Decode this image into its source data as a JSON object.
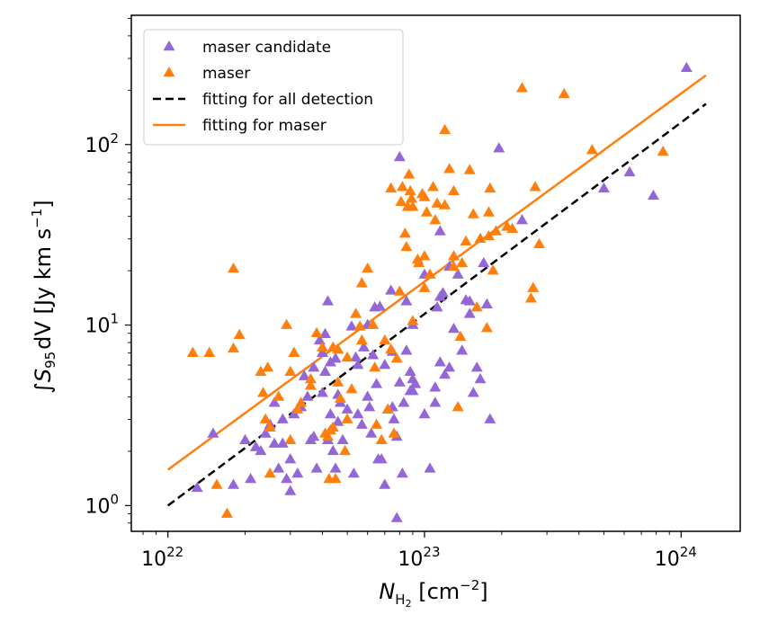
{
  "chart_data": {
    "type": "scatter",
    "title": "",
    "xlabel": "N_H2 [cm^-2]",
    "xlabel_parts": {
      "symbol": "N",
      "sub": "H",
      "subsub": "2",
      "unit_open": " [cm",
      "exp": "−2",
      "unit_close": "]"
    },
    "ylabel": "∫S95 dV [Jy km s^-1]",
    "ylabel_parts": {
      "integral": "∫",
      "symbol": "S",
      "sub": "95",
      "dv": "dV",
      "unit": " [Jy km s",
      "exp": "−1",
      "close": "]"
    },
    "xscale": "log",
    "yscale": "log",
    "xlim": [
      7.2e+21,
      1.7e+24
    ],
    "ylim": [
      0.72,
      520
    ],
    "x_ticks": [
      {
        "value": 1e+22,
        "base": "10",
        "exp": "22"
      },
      {
        "value": 1e+23,
        "base": "10",
        "exp": "23"
      },
      {
        "value": 1e+24,
        "base": "10",
        "exp": "24"
      }
    ],
    "y_ticks": [
      {
        "value": 1,
        "base": "10",
        "exp": "0"
      },
      {
        "value": 10,
        "base": "10",
        "exp": "1"
      },
      {
        "value": 100,
        "base": "10",
        "exp": "2"
      }
    ],
    "legend_position": "upper-left",
    "series": [
      {
        "name": "maser candidate",
        "marker": "triangle",
        "color": "#9467d6",
        "points": [
          [
            1.3e+22,
            1.25
          ],
          [
            1.5e+22,
            2.5
          ],
          [
            1.8e+22,
            1.3
          ],
          [
            2e+22,
            2.3
          ],
          [
            2.1e+22,
            1.4
          ],
          [
            2.2e+22,
            2.1
          ],
          [
            2.3e+22,
            2.0
          ],
          [
            2.4e+22,
            2.5
          ],
          [
            2.5e+22,
            2.8
          ],
          [
            2.6e+22,
            3.7
          ],
          [
            2.6e+22,
            2.2
          ],
          [
            2.7e+22,
            1.6
          ],
          [
            2.8e+22,
            2.2
          ],
          [
            2.8e+22,
            3.0
          ],
          [
            2.9e+22,
            1.4
          ],
          [
            3e+22,
            1.2
          ],
          [
            3e+22,
            1.8
          ],
          [
            3.1e+22,
            3.2
          ],
          [
            3.2e+22,
            1.5
          ],
          [
            3.3e+22,
            3.5
          ],
          [
            3.4e+22,
            5.2
          ],
          [
            3.5e+22,
            4.0
          ],
          [
            3.6e+22,
            2.3
          ],
          [
            3.7e+22,
            5.8
          ],
          [
            3.8e+22,
            1.6
          ],
          [
            3.9e+22,
            8.2
          ],
          [
            4e+22,
            7.0
          ],
          [
            4e+22,
            4.2
          ],
          [
            4.1e+22,
            8.9
          ],
          [
            4.1e+22,
            5.5
          ],
          [
            4.2e+22,
            2.3
          ],
          [
            4.2e+22,
            13.5
          ],
          [
            4.3e+22,
            6.2
          ],
          [
            4.3e+22,
            3.2
          ],
          [
            4.4e+22,
            2.0
          ],
          [
            4.5e+22,
            1.6
          ],
          [
            4.5e+22,
            6.5
          ],
          [
            4.6e+22,
            4.1
          ],
          [
            4.7e+22,
            3.7
          ],
          [
            4.8e+22,
            2.3
          ],
          [
            5e+22,
            3.4
          ],
          [
            5.2e+22,
            9.8
          ],
          [
            5.3e+22,
            1.5
          ],
          [
            5.5e+22,
            3.2
          ],
          [
            5.5e+22,
            6.0
          ],
          [
            5.7e+22,
            2.8
          ],
          [
            5.8e+22,
            7.5
          ],
          [
            6e+22,
            10.0
          ],
          [
            6e+22,
            4.0
          ],
          [
            6.1e+22,
            3.5
          ],
          [
            6.2e+22,
            2.5
          ],
          [
            6.4e+22,
            12.5
          ],
          [
            6.5e+22,
            4.7
          ],
          [
            6.6e+22,
            1.8
          ],
          [
            6.8e+22,
            1.8
          ],
          [
            7e+22,
            6.0
          ],
          [
            7e+22,
            1.3
          ],
          [
            7.2e+22,
            3.4
          ],
          [
            7.4e+22,
            15.5
          ],
          [
            7.5e+22,
            7.1
          ],
          [
            7.5e+22,
            3.5
          ],
          [
            7.6e+22,
            3.0
          ],
          [
            7.8e+22,
            0.85
          ],
          [
            7.8e+22,
            2.4
          ],
          [
            8e+22,
            4.8
          ],
          [
            8e+22,
            85
          ],
          [
            8.2e+22,
            1.5
          ],
          [
            8.3e+22,
            3.7
          ],
          [
            8.5e+22,
            7.2
          ],
          [
            8.5e+22,
            13.5
          ],
          [
            8.8e+22,
            5.5
          ],
          [
            8.8e+22,
            4.3
          ],
          [
            9e+22,
            5.0
          ],
          [
            9e+22,
            10.0
          ],
          [
            9.2e+22,
            4.7
          ],
          [
            1e+23,
            3.2
          ],
          [
            1.05e+23,
            1.6
          ],
          [
            1.1e+23,
            4.5
          ],
          [
            1.1e+23,
            3.7
          ],
          [
            1.12e+23,
            12.5
          ],
          [
            1.15e+23,
            6.2
          ],
          [
            1.18e+23,
            15
          ],
          [
            1.2e+23,
            5.3
          ],
          [
            1.25e+23,
            5.8
          ],
          [
            1.3e+23,
            9.5
          ],
          [
            1.35e+23,
            19
          ],
          [
            1.4e+23,
            7.2
          ],
          [
            1.5e+23,
            13.5
          ],
          [
            1.55e+23,
            4.2
          ],
          [
            1.6e+23,
            5.8
          ],
          [
            1.7e+23,
            22
          ],
          [
            1.75e+23,
            13
          ],
          [
            1.8e+23,
            3.0
          ],
          [
            1.95e+23,
            95
          ],
          [
            2.4e+23,
            38
          ],
          [
            5e+23,
            57
          ],
          [
            6.3e+23,
            70
          ],
          [
            7.8e+23,
            52
          ],
          [
            1.05e+24,
            265
          ],
          [
            1.15e+23,
            33
          ],
          [
            1.25e+23,
            21
          ],
          [
            1.45e+23,
            13.7
          ],
          [
            1e+23,
            19
          ],
          [
            1.15e+23,
            14.3
          ],
          [
            6.3e+22,
            6.8
          ],
          [
            5.4e+22,
            6.6
          ],
          [
            6.7e+22,
            12.6
          ],
          [
            4.6e+22,
            2.9
          ],
          [
            3.7e+22,
            2.4
          ],
          [
            1.65e+23,
            5.0
          ],
          [
            9e+22,
            4.3
          ],
          [
            1.5e+23,
            11.5
          ]
        ]
      },
      {
        "name": "maser",
        "marker": "triangle",
        "color": "#ff7f0e",
        "points": [
          [
            1.25e+22,
            7.0
          ],
          [
            1.45e+22,
            7.0
          ],
          [
            1.55e+22,
            1.3
          ],
          [
            1.7e+22,
            0.9
          ],
          [
            1.8e+22,
            20.5
          ],
          [
            1.8e+22,
            7.4
          ],
          [
            1.9e+22,
            8.8
          ],
          [
            2.3e+22,
            5.5
          ],
          [
            2.35e+22,
            4.2
          ],
          [
            2.4e+22,
            3.0
          ],
          [
            2.45e+22,
            5.8
          ],
          [
            2.5e+22,
            1.5
          ],
          [
            2.5e+22,
            2.7
          ],
          [
            2.7e+22,
            4.0
          ],
          [
            2.9e+22,
            10.0
          ],
          [
            3e+22,
            2.3
          ],
          [
            3e+22,
            5.5
          ],
          [
            3.1e+22,
            7.0
          ],
          [
            3.2e+22,
            3.4
          ],
          [
            3.3e+22,
            3.7
          ],
          [
            3.6e+22,
            5.0
          ],
          [
            3.8e+22,
            9.0
          ],
          [
            4e+22,
            7.5
          ],
          [
            4.1e+22,
            2.5
          ],
          [
            4.2e+22,
            2.4
          ],
          [
            4.25e+22,
            1.4
          ],
          [
            4.3e+22,
            2.6
          ],
          [
            4.4e+22,
            2.7
          ],
          [
            4.4e+22,
            7.5
          ],
          [
            4.5e+22,
            1.4
          ],
          [
            4.6e+22,
            4.8
          ],
          [
            4.7e+22,
            3.9
          ],
          [
            4.9e+22,
            2.0
          ],
          [
            5e+22,
            6.6
          ],
          [
            5e+22,
            3.0
          ],
          [
            5.2e+22,
            4.4
          ],
          [
            5.4e+22,
            11.5
          ],
          [
            5.6e+22,
            9.8
          ],
          [
            5.7e+22,
            8.2
          ],
          [
            6e+22,
            20.5
          ],
          [
            6.3e+22,
            10.0
          ],
          [
            6.4e+22,
            5.8
          ],
          [
            6.5e+22,
            2.8
          ],
          [
            6.8e+22,
            2.3
          ],
          [
            7e+22,
            8.2
          ],
          [
            7.2e+22,
            3.4
          ],
          [
            7.4e+22,
            7.3
          ],
          [
            7.4e+22,
            57
          ],
          [
            7.6e+22,
            2.5
          ],
          [
            7.8e+22,
            6.5
          ],
          [
            8e+22,
            15.3
          ],
          [
            8.2e+22,
            58
          ],
          [
            8.4e+22,
            32
          ],
          [
            8.5e+22,
            27
          ],
          [
            8.6e+22,
            45
          ],
          [
            8.7e+22,
            68
          ],
          [
            8.8e+22,
            55
          ],
          [
            8.9e+22,
            50
          ],
          [
            9e+22,
            10.5
          ],
          [
            9.5e+22,
            22
          ],
          [
            9.8e+22,
            53
          ],
          [
            1e+23,
            24
          ],
          [
            1.02e+23,
            42
          ],
          [
            1.05e+23,
            19
          ],
          [
            1.08e+23,
            58
          ],
          [
            1.1e+23,
            38
          ],
          [
            1.12e+23,
            47
          ],
          [
            1.2e+23,
            120
          ],
          [
            1.25e+23,
            73
          ],
          [
            1.3e+23,
            55
          ],
          [
            1.35e+23,
            3.5
          ],
          [
            1.38e+23,
            8.6
          ],
          [
            1.4e+23,
            22
          ],
          [
            1.45e+23,
            29
          ],
          [
            1.5e+23,
            72
          ],
          [
            1.55e+23,
            41
          ],
          [
            1.65e+23,
            30
          ],
          [
            1.75e+23,
            9.6
          ],
          [
            1.78e+23,
            42
          ],
          [
            1.8e+23,
            57
          ],
          [
            1.85e+23,
            20
          ],
          [
            1.9e+23,
            33
          ],
          [
            2.1e+23,
            35
          ],
          [
            2.2e+23,
            34
          ],
          [
            2.4e+23,
            205
          ],
          [
            2.6e+23,
            14
          ],
          [
            2.65e+23,
            16
          ],
          [
            2.7e+23,
            58
          ],
          [
            2.8e+23,
            28
          ],
          [
            3.5e+23,
            190
          ],
          [
            4.5e+23,
            93
          ],
          [
            8.5e+23,
            91
          ],
          [
            1e+23,
            16
          ],
          [
            9.4e+22,
            23
          ],
          [
            1.3e+23,
            24
          ],
          [
            8.1e+22,
            48
          ],
          [
            1.3e+23,
            21
          ],
          [
            1.78e+23,
            31
          ],
          [
            1.6e+23,
            12.5
          ],
          [
            5.7e+22,
            17
          ],
          [
            4.6e+22,
            7.3
          ],
          [
            3.6e+22,
            4.6
          ],
          [
            9e+22,
            45
          ],
          [
            1.2e+23,
            46
          ],
          [
            1e+23,
            51
          ]
        ]
      }
    ],
    "fits": [
      {
        "name": "fitting for all detection",
        "style": "dashed",
        "color": "#000000",
        "x": [
          1e+22,
          1.25e+24
        ],
        "y": [
          1.0,
          168
        ]
      },
      {
        "name": "fitting for maser",
        "style": "solid",
        "color": "#ff7f0e",
        "x": [
          1e+22,
          1.25e+24
        ],
        "y": [
          1.58,
          242
        ]
      }
    ]
  }
}
